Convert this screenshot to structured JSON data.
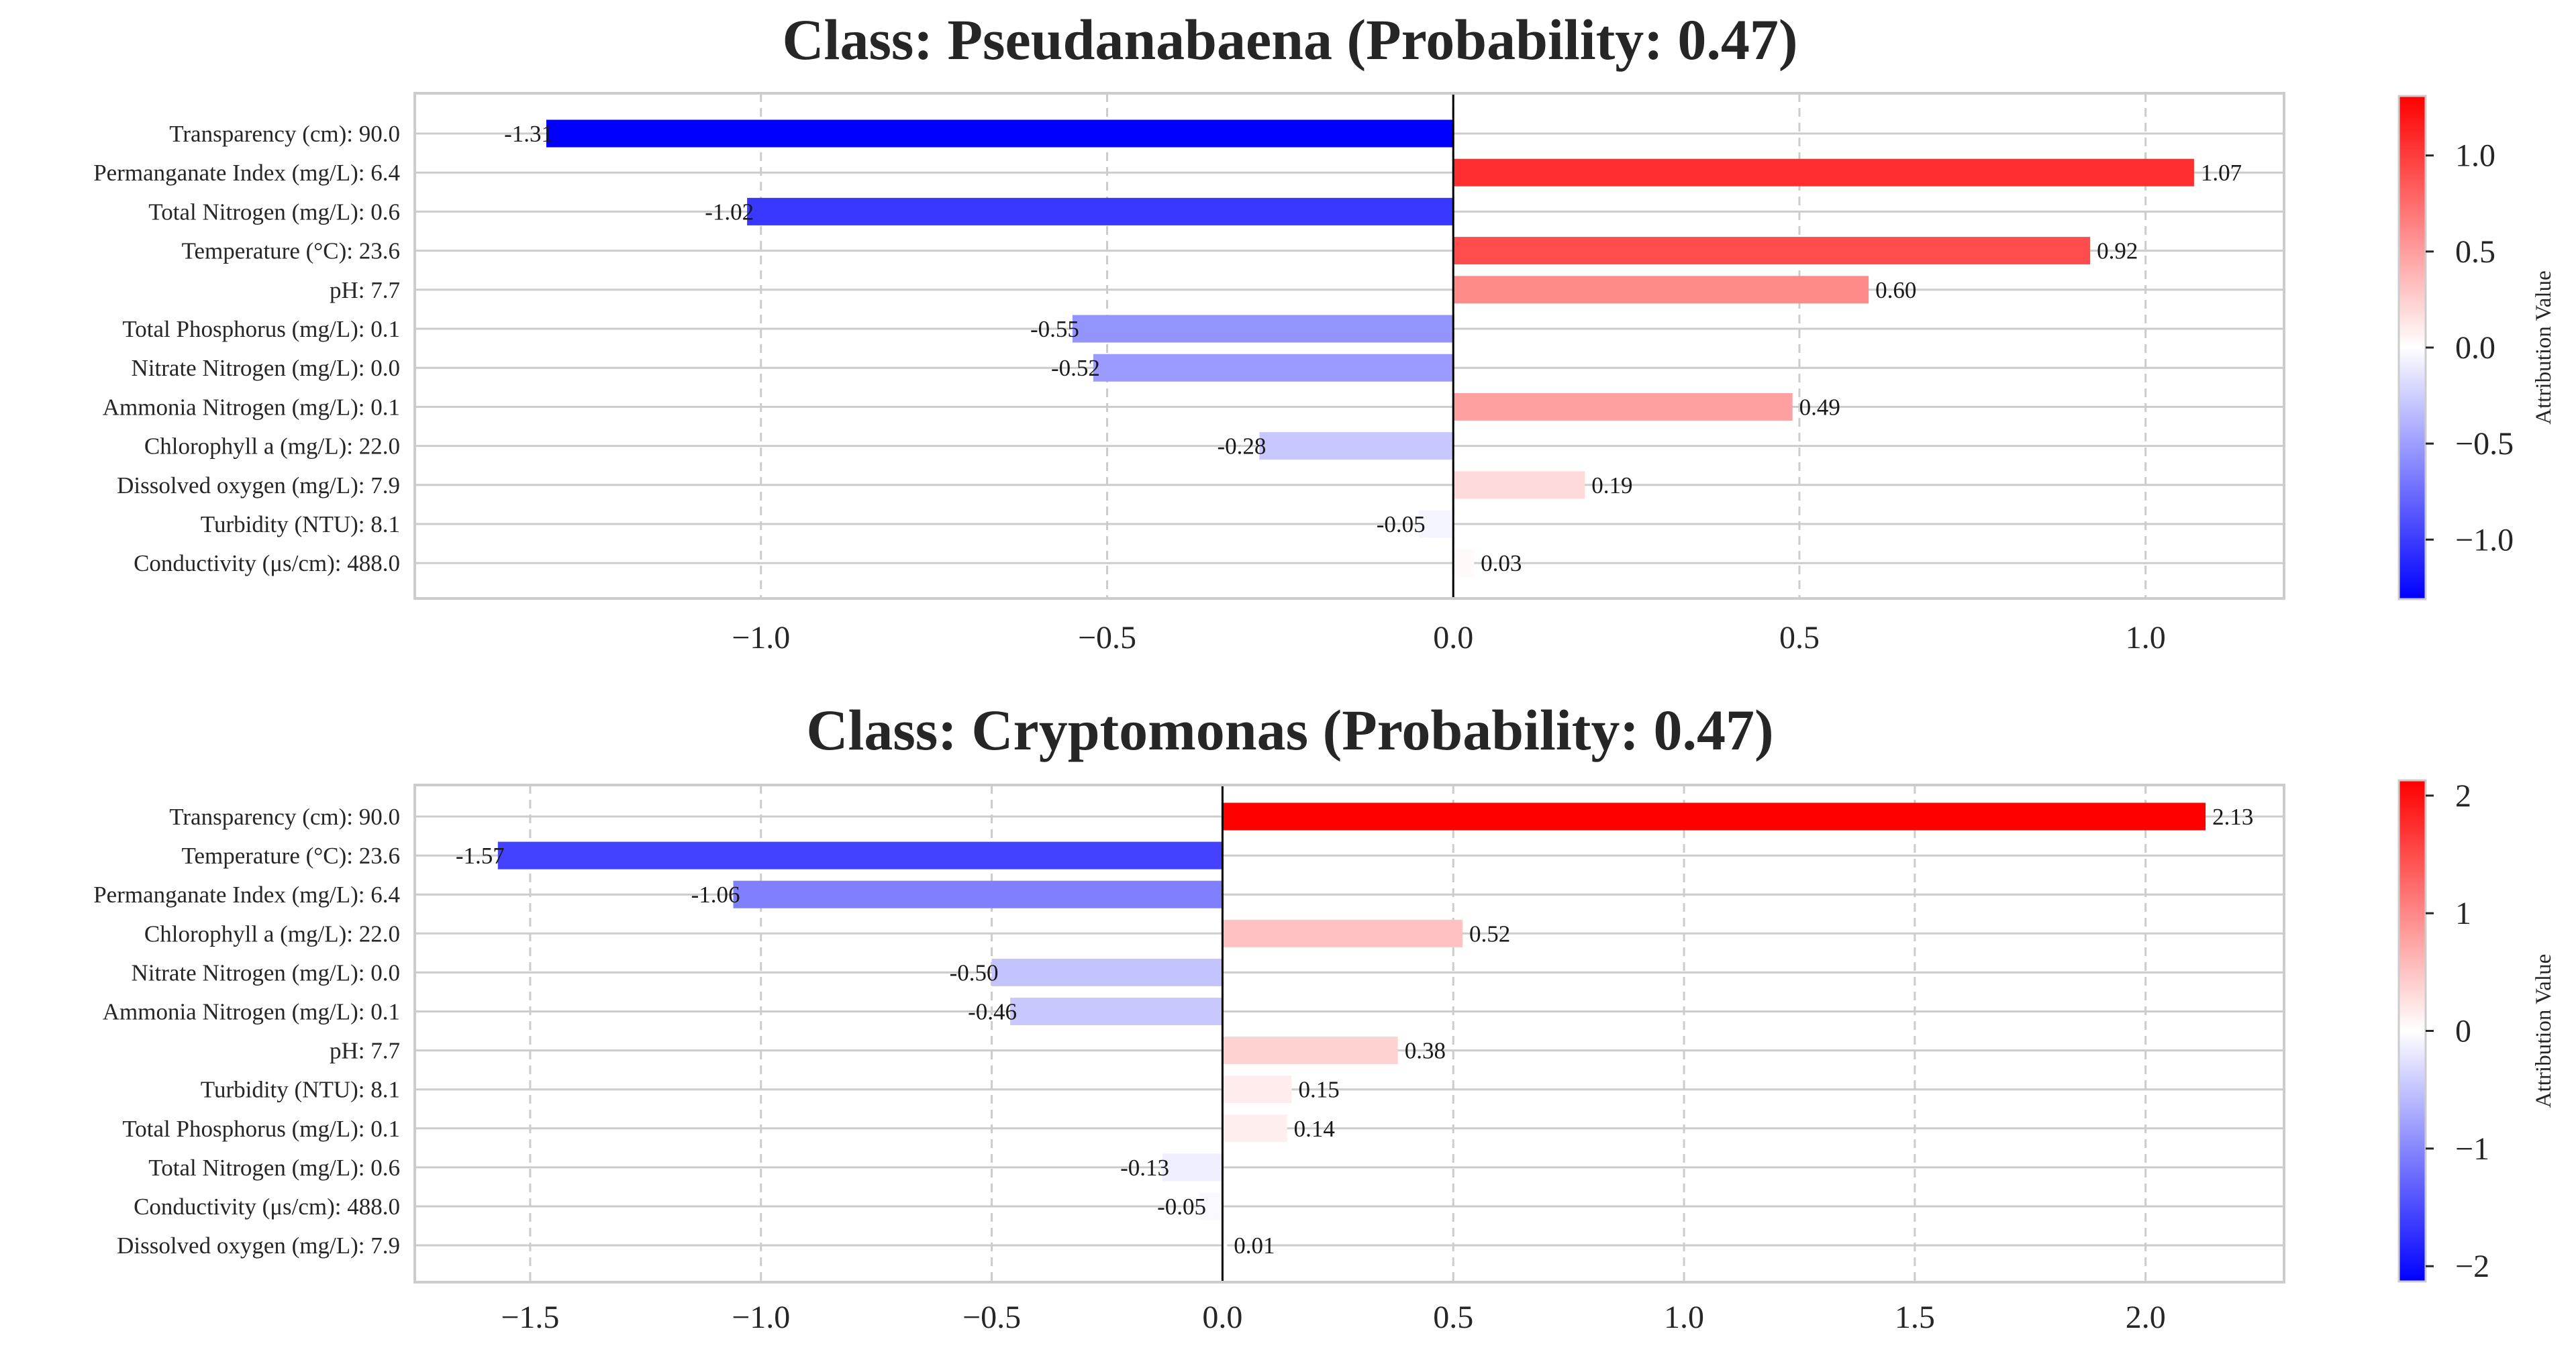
{
  "chart_data": [
    {
      "type": "bar",
      "orientation": "horizontal",
      "title": "Class: Pseudanabaena (Probability: 0.47)",
      "categories": [
        "Transparency (cm): 90.0",
        "Permanganate Index (mg/L): 6.4",
        "Total Nitrogen (mg/L): 0.6",
        "Temperature (°C): 23.6",
        "pH: 7.7",
        "Total Phosphorus (mg/L): 0.1",
        "Nitrate Nitrogen (mg/L): 0.0",
        "Ammonia Nitrogen (mg/L): 0.1",
        "Chlorophyll a (mg/L): 22.0",
        "Dissolved oxygen (mg/L): 7.9",
        "Turbidity (NTU): 8.1",
        "Conductivity (μs/cm): 488.0"
      ],
      "values": [
        -1.31,
        1.07,
        -1.02,
        0.92,
        0.6,
        -0.55,
        -0.52,
        0.49,
        -0.28,
        0.19,
        -0.05,
        0.03
      ],
      "value_labels": [
        "-1.31",
        "1.07",
        "-1.02",
        "0.92",
        "0.60",
        "-0.55",
        "-0.52",
        "0.49",
        "-0.28",
        "0.19",
        "-0.05",
        "0.03"
      ],
      "xlim": [
        -1.5,
        1.2
      ],
      "xticks": [
        -1.0,
        -0.5,
        0.0,
        0.5,
        1.0
      ],
      "xtick_labels": [
        "−1.0",
        "−0.5",
        "0.0",
        "0.5",
        "1.0"
      ],
      "grid": true,
      "colorbar": {
        "label": "Attribution Value",
        "range": [
          -1.31,
          1.31
        ],
        "ticks": [
          1.0,
          0.5,
          0.0,
          -0.5,
          -1.0
        ],
        "tick_labels": [
          "1.0",
          "0.5",
          "0.0",
          "−0.5",
          "−1.0"
        ],
        "cmap": "bwr"
      }
    },
    {
      "type": "bar",
      "orientation": "horizontal",
      "title": "Class: Cryptomonas (Probability: 0.47)",
      "categories": [
        "Transparency (cm): 90.0",
        "Temperature (°C): 23.6",
        "Permanganate Index (mg/L): 6.4",
        "Chlorophyll a (mg/L): 22.0",
        "Nitrate Nitrogen (mg/L): 0.0",
        "Ammonia Nitrogen (mg/L): 0.1",
        "pH: 7.7",
        "Turbidity (NTU): 8.1",
        "Total Phosphorus (mg/L): 0.1",
        "Total Nitrogen (mg/L): 0.6",
        "Conductivity (μs/cm): 488.0",
        "Dissolved oxygen (mg/L): 7.9"
      ],
      "values": [
        2.13,
        -1.57,
        -1.06,
        0.52,
        -0.5,
        -0.46,
        0.38,
        0.15,
        0.14,
        -0.13,
        -0.05,
        0.01
      ],
      "value_labels": [
        "2.13",
        "-1.57",
        "-1.06",
        "0.52",
        "-0.50",
        "-0.46",
        "0.38",
        "0.15",
        "0.14",
        "-0.13",
        "-0.05",
        "0.01"
      ],
      "xlim": [
        -1.75,
        2.3
      ],
      "xticks": [
        -1.5,
        -1.0,
        -0.5,
        0.0,
        0.5,
        1.0,
        1.5,
        2.0
      ],
      "xtick_labels": [
        "−1.5",
        "−1.0",
        "−0.5",
        "0.0",
        "0.5",
        "1.0",
        "1.5",
        "2.0"
      ],
      "grid": true,
      "colorbar": {
        "label": "Attribution Value",
        "range": [
          -2.13,
          2.13
        ],
        "ticks": [
          2,
          1,
          0,
          -1,
          -2
        ],
        "tick_labels": [
          "2",
          "1",
          "0",
          "−1",
          "−2"
        ],
        "cmap": "bwr"
      }
    }
  ],
  "colors": {
    "negative": "#0000ff",
    "neutral": "#ffffff",
    "positive": "#ff0000",
    "grid": "#cccccc",
    "axis_frame": "#cccccc",
    "zero_line": "#000000",
    "text": "#262626"
  }
}
